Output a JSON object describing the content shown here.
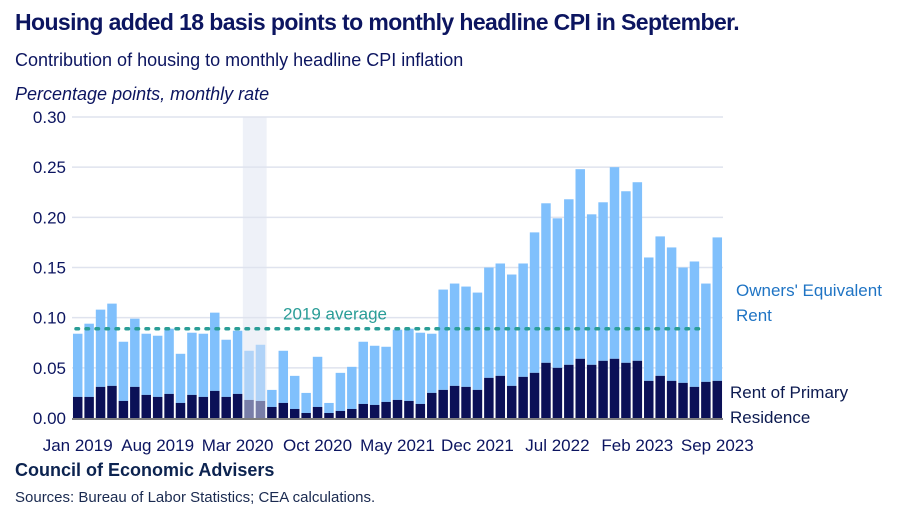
{
  "header": {
    "title": "Housing added 18 basis points to monthly headline CPI in September.",
    "subtitle": "Contribution of housing to monthly headline CPI inflation",
    "units": "Percentage points, monthly rate"
  },
  "footer": {
    "organization": "Council of Economic Advisers",
    "sources": "Sources: Bureau of Labor Statistics; CEA calculations."
  },
  "colors": {
    "oer": "#80c0fc",
    "rent": "#0b1057",
    "oer_shaded": "#b0d3f8",
    "rent_shaded": "#797ea8",
    "shade_band": "#eef1f8",
    "average_line": "#2a9d97",
    "oer_label": "#1f74c4",
    "rent_label": "#0c1a50",
    "grid": "#dfe3ee",
    "axis": "#7f7f7f",
    "text": "#0c1560"
  },
  "chart_data": {
    "type": "bar",
    "stacked": true,
    "title": "Housing added 18 basis points to monthly headline CPI in September.",
    "subtitle": "Contribution of housing to monthly headline CPI inflation",
    "ylabel": "Percentage points, monthly rate",
    "xlabel": "",
    "ylim": [
      0,
      0.3
    ],
    "yticks": [
      "0.00",
      "0.05",
      "0.10",
      "0.15",
      "0.20",
      "0.25",
      "0.30"
    ],
    "ytick_values": [
      0,
      0.05,
      0.1,
      0.15,
      0.2,
      0.25,
      0.3
    ],
    "grid": true,
    "xtick_labels": [
      {
        "index": 0,
        "label": "Jan 2019"
      },
      {
        "index": 7,
        "label": "Aug 2019"
      },
      {
        "index": 14,
        "label": "Mar 2020"
      },
      {
        "index": 21,
        "label": "Oct 2020"
      },
      {
        "index": 28,
        "label": "May 2021"
      },
      {
        "index": 35,
        "label": "Dec 2021"
      },
      {
        "index": 42,
        "label": "Jul 2022"
      },
      {
        "index": 49,
        "label": "Feb 2023"
      },
      {
        "index": 56,
        "label": "Sep 2023"
      }
    ],
    "categories": [
      "Jan 2019",
      "Feb 2019",
      "Mar 2019",
      "Apr 2019",
      "May 2019",
      "Jun 2019",
      "Jul 2019",
      "Aug 2019",
      "Sep 2019",
      "Oct 2019",
      "Nov 2019",
      "Dec 2019",
      "Jan 2020",
      "Feb 2020",
      "Mar 2020",
      "Apr 2020",
      "May 2020",
      "Jun 2020",
      "Jul 2020",
      "Aug 2020",
      "Sep 2020",
      "Oct 2020",
      "Nov 2020",
      "Dec 2020",
      "Jan 2021",
      "Feb 2021",
      "Mar 2021",
      "Apr 2021",
      "May 2021",
      "Jun 2021",
      "Jul 2021",
      "Aug 2021",
      "Sep 2021",
      "Oct 2021",
      "Nov 2021",
      "Dec 2021",
      "Jan 2022",
      "Feb 2022",
      "Mar 2022",
      "Apr 2022",
      "May 2022",
      "Jun 2022",
      "Jul 2022",
      "Aug 2022",
      "Sep 2022",
      "Oct 2022",
      "Nov 2022",
      "Dec 2022",
      "Jan 2023",
      "Feb 2023",
      "Mar 2023",
      "Apr 2023",
      "May 2023",
      "Jun 2023",
      "Jul 2023",
      "Aug 2023",
      "Sep 2023"
    ],
    "series": [
      {
        "name": "Rent of Primary Residence",
        "values": [
          0.021,
          0.021,
          0.031,
          0.032,
          0.017,
          0.031,
          0.023,
          0.021,
          0.024,
          0.015,
          0.023,
          0.021,
          0.027,
          0.021,
          0.024,
          0.018,
          0.017,
          0.011,
          0.015,
          0.009,
          0.005,
          0.011,
          0.005,
          0.007,
          0.009,
          0.014,
          0.013,
          0.016,
          0.018,
          0.017,
          0.014,
          0.025,
          0.028,
          0.032,
          0.031,
          0.028,
          0.04,
          0.042,
          0.032,
          0.041,
          0.045,
          0.055,
          0.05,
          0.053,
          0.059,
          0.053,
          0.057,
          0.059,
          0.055,
          0.057,
          0.037,
          0.042,
          0.037,
          0.035,
          0.031,
          0.036,
          0.037
        ]
      },
      {
        "name": "Owners' Equivalent Rent",
        "values": [
          0.063,
          0.073,
          0.077,
          0.082,
          0.059,
          0.068,
          0.061,
          0.061,
          0.065,
          0.049,
          0.062,
          0.063,
          0.078,
          0.057,
          0.063,
          0.049,
          0.056,
          0.017,
          0.052,
          0.033,
          0.02,
          0.05,
          0.01,
          0.038,
          0.042,
          0.062,
          0.059,
          0.055,
          0.07,
          0.072,
          0.071,
          0.059,
          0.1,
          0.102,
          0.1,
          0.097,
          0.11,
          0.112,
          0.111,
          0.113,
          0.14,
          0.159,
          0.149,
          0.165,
          0.189,
          0.15,
          0.158,
          0.191,
          0.171,
          0.178,
          0.123,
          0.139,
          0.133,
          0.115,
          0.125,
          0.098,
          0.143
        ]
      }
    ],
    "totals": [
      0.084,
      0.094,
      0.108,
      0.114,
      0.076,
      0.099,
      0.084,
      0.082,
      0.089,
      0.064,
      0.085,
      0.084,
      0.105,
      0.078,
      0.087,
      0.067,
      0.073,
      0.028,
      0.067,
      0.042,
      0.025,
      0.061,
      0.015,
      0.045,
      0.051,
      0.076,
      0.072,
      0.071,
      0.088,
      0.089,
      0.085,
      0.084,
      0.128,
      0.134,
      0.131,
      0.125,
      0.15,
      0.154,
      0.143,
      0.154,
      0.185,
      0.214,
      0.199,
      0.218,
      0.248,
      0.203,
      0.215,
      0.25,
      0.226,
      0.235,
      0.16,
      0.181,
      0.17,
      0.15,
      0.156,
      0.134,
      0.18
    ],
    "shaded_period": {
      "start": "Apr 2020",
      "end": "May 2020",
      "start_index": 15,
      "end_index": 16
    },
    "reference_line": {
      "label": "2019 average",
      "value": 0.089,
      "style": "dotted",
      "end_index": 55
    },
    "series_labels": [
      {
        "series": "Owners' Equivalent Rent",
        "lines": [
          "Owners' Equivalent",
          "Rent"
        ],
        "placement": "right"
      },
      {
        "series": "Rent of Primary Residence",
        "lines": [
          "Rent of Primary",
          "Residence"
        ],
        "placement": "right"
      }
    ]
  }
}
